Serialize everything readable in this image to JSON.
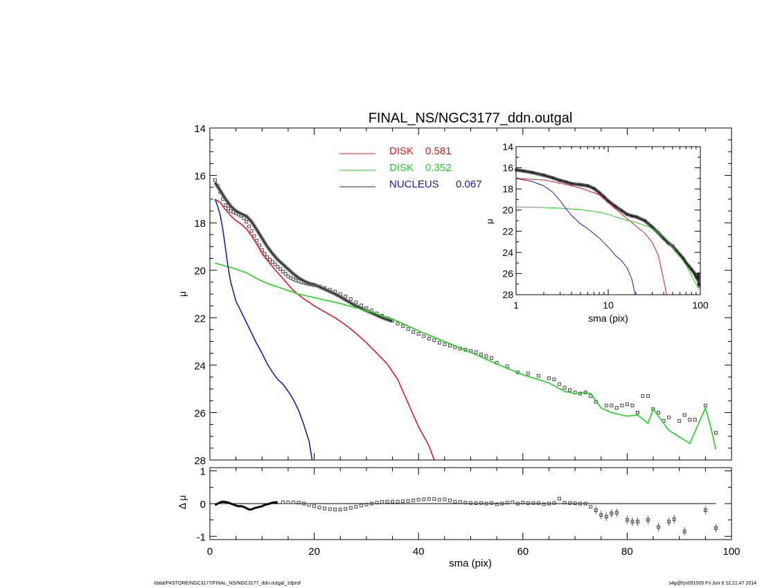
{
  "chart_data": [
    {
      "type": "line",
      "title": "FINAL_NS/NGC3177_ddn.outgal",
      "xlabel": "",
      "ylabel": "μ",
      "xlim": [
        0,
        100
      ],
      "ylim": [
        28,
        14
      ],
      "y_inverted": true,
      "x_ticks": [
        0,
        20,
        40,
        60,
        80,
        100
      ],
      "y_ticks": [
        14,
        16,
        18,
        20,
        22,
        24,
        26,
        28
      ],
      "legend_position": "top-center",
      "components": [
        {
          "name": "DISK",
          "value": "0.581",
          "color": "#e8141c"
        },
        {
          "name": "DISK",
          "value": "0.352",
          "color": "#19d419"
        },
        {
          "name": "NUCLEUS",
          "value": "0.067",
          "color": "#1a1ab4"
        }
      ],
      "series": [
        {
          "component": 0,
          "color": "#e8141c",
          "x": [
            1,
            2,
            3,
            4,
            5,
            6,
            7,
            8,
            9,
            10,
            12,
            14,
            16,
            18,
            20,
            22,
            24,
            26,
            28,
            30,
            32,
            34,
            36,
            38,
            40,
            42,
            43
          ],
          "y": [
            17.0,
            17.15,
            17.45,
            17.7,
            17.9,
            18.05,
            18.25,
            18.55,
            18.9,
            19.3,
            19.85,
            20.35,
            20.85,
            21.2,
            21.5,
            21.75,
            22.0,
            22.3,
            22.65,
            23.05,
            23.5,
            23.95,
            24.6,
            25.6,
            26.6,
            27.4,
            28.0
          ]
        },
        {
          "component": 1,
          "color": "#19d419",
          "x": [
            1,
            3,
            5,
            7,
            9,
            11,
            13,
            15,
            17,
            20,
            25,
            30,
            35,
            40,
            45,
            50,
            55,
            60,
            65,
            68,
            70,
            72,
            73,
            74,
            75,
            77,
            80,
            82,
            84,
            85,
            88,
            92,
            95,
            96,
            97
          ],
          "y": [
            19.7,
            19.82,
            19.95,
            20.1,
            20.35,
            20.55,
            20.7,
            20.85,
            21.0,
            21.15,
            21.4,
            21.7,
            22.05,
            22.55,
            23.0,
            23.45,
            23.95,
            24.4,
            24.75,
            25.1,
            25.2,
            25.15,
            25.2,
            25.5,
            25.8,
            26.0,
            26.15,
            26.1,
            26.45,
            25.85,
            26.75,
            27.3,
            25.8,
            26.6,
            27.55
          ]
        },
        {
          "component": 2,
          "color": "#1a1ab4",
          "x": [
            1,
            1.5,
            2,
            2.5,
            3,
            3.5,
            4,
            5,
            6,
            7,
            8,
            9,
            10,
            11,
            12,
            13,
            14,
            15,
            16,
            17,
            18,
            19,
            19.6
          ],
          "y": [
            17.0,
            17.3,
            17.7,
            18.3,
            19.1,
            19.9,
            20.5,
            21.3,
            21.75,
            22.2,
            22.65,
            23.1,
            23.5,
            23.95,
            24.3,
            24.6,
            24.8,
            25.1,
            25.45,
            25.9,
            26.5,
            27.2,
            28.0
          ]
        },
        {
          "name": "",
          "color": "#000000",
          "style": "thin-line",
          "x": [
            1,
            2,
            3,
            4,
            5,
            6,
            7,
            8,
            9,
            10,
            11,
            12,
            13,
            14,
            15,
            16,
            17,
            18,
            19,
            20,
            21,
            22,
            23,
            24,
            25,
            26,
            27,
            28,
            29,
            30,
            31,
            32,
            33,
            34,
            35
          ],
          "y": [
            16.3,
            16.65,
            17.0,
            17.3,
            17.5,
            17.62,
            17.72,
            17.95,
            18.3,
            18.65,
            19.0,
            19.3,
            19.55,
            19.75,
            19.95,
            20.15,
            20.32,
            20.45,
            20.55,
            20.6,
            20.7,
            20.8,
            20.9,
            21.0,
            21.12,
            21.25,
            21.38,
            21.5,
            21.6,
            21.7,
            21.8,
            21.9,
            22.0,
            22.08,
            22.15
          ]
        },
        {
          "name": "",
          "color": "#000000",
          "style": "square-markers",
          "x": [
            1,
            1.5,
            2,
            2.5,
            3,
            3.5,
            4,
            4.5,
            5,
            5.5,
            6,
            6.5,
            7,
            7.5,
            8,
            8.5,
            9,
            9.5,
            10,
            10.5,
            11,
            11.5,
            12,
            12.5,
            13,
            13.5,
            14,
            14.5,
            15,
            15.5,
            16,
            16.5,
            17,
            17.5,
            18,
            18.5,
            19,
            19.5,
            20,
            21,
            22,
            23,
            24,
            25,
            26,
            27,
            28,
            29,
            30,
            31,
            32,
            33,
            34,
            35,
            36,
            37,
            38,
            39,
            40,
            41,
            42,
            43,
            44,
            45,
            46,
            47,
            48,
            49,
            50,
            51,
            52,
            53,
            54,
            55,
            56,
            57,
            58,
            59,
            60,
            61,
            62,
            63,
            64,
            65,
            66,
            67,
            68,
            69,
            70,
            71,
            72,
            73,
            74,
            75,
            76,
            77,
            78,
            79,
            80,
            81,
            82,
            83,
            84,
            85,
            86,
            87,
            88,
            89,
            90,
            91,
            92,
            93,
            94,
            95,
            96,
            97
          ],
          "y": [
            16.2,
            16.45,
            16.7,
            17.0,
            17.25,
            17.4,
            17.5,
            17.55,
            17.6,
            17.65,
            17.7,
            17.8,
            17.95,
            18.15,
            18.35,
            18.55,
            18.75,
            18.95,
            19.15,
            19.3,
            19.45,
            19.55,
            19.65,
            19.75,
            19.85,
            19.95,
            20.05,
            20.15,
            20.25,
            20.32,
            20.38,
            20.42,
            20.46,
            20.5,
            20.52,
            20.55,
            20.58,
            20.6,
            20.63,
            20.68,
            20.75,
            20.82,
            20.9,
            21.0,
            21.1,
            21.22,
            21.35,
            21.48,
            21.6,
            21.7,
            21.82,
            21.92,
            22.02,
            22.12,
            22.25,
            22.35,
            22.48,
            22.6,
            22.68,
            22.78,
            22.88,
            22.95,
            23.05,
            23.12,
            23.18,
            23.25,
            23.3,
            23.35,
            23.4,
            23.45,
            23.55,
            23.62,
            23.7,
            23.75,
            23.85,
            23.92,
            24.0,
            24.08,
            24.15,
            24.22,
            24.28,
            24.35,
            24.42,
            24.5,
            24.55,
            24.62,
            24.7,
            24.78,
            24.85,
            24.92,
            25.0,
            25.05,
            25.12,
            25.2,
            25.25,
            25.3,
            25.35,
            25.4,
            25.45,
            25.5,
            25.55,
            25.6,
            25.65,
            25.7,
            25.75,
            25.8,
            25.85,
            25.9,
            25.95,
            26.0,
            26.05,
            26.1,
            26.15,
            26.2,
            26.25,
            26.3
          ],
          "note": "profile points; later points sparser",
          "sparse_x": [
            55,
            57,
            59,
            61,
            63,
            65,
            66,
            67,
            68,
            69,
            70,
            71,
            72,
            73,
            74,
            76,
            77,
            78,
            79,
            80,
            81,
            82,
            83,
            84,
            85,
            86,
            87,
            88,
            90,
            91,
            92,
            93,
            95,
            97
          ],
          "sparse_y": [
            23.9,
            24.05,
            24.3,
            24.35,
            24.45,
            24.55,
            24.6,
            24.8,
            24.95,
            25.05,
            25.15,
            25.2,
            25.15,
            25.3,
            25.55,
            25.7,
            25.7,
            25.8,
            25.7,
            25.65,
            25.7,
            26.0,
            25.3,
            25.3,
            25.85,
            26.0,
            26.35,
            26.2,
            26.35,
            26.1,
            26.3,
            26.3,
            25.7,
            26.85
          ]
        }
      ]
    },
    {
      "type": "line",
      "title": "",
      "xlabel": "sma (pix)",
      "ylabel": "μ",
      "xscale": "log",
      "xlim": [
        1,
        100
      ],
      "ylim": [
        28,
        14
      ],
      "y_inverted": true,
      "x_ticks": [
        1,
        10,
        100
      ],
      "y_ticks": [
        14,
        16,
        18,
        20,
        22,
        24,
        26,
        28
      ],
      "series": [
        {
          "component": 0,
          "color": "#e8141c",
          "x": [
            1,
            2,
            3,
            5,
            8,
            10,
            15,
            20,
            25,
            30,
            35,
            40,
            43
          ],
          "y": [
            17.0,
            17.15,
            17.45,
            17.9,
            18.55,
            19.3,
            20.6,
            21.5,
            22.2,
            23.05,
            24.3,
            26.6,
            28.0
          ]
        },
        {
          "component": 1,
          "color": "#19d419",
          "x": [
            1,
            2,
            3,
            5,
            8,
            10,
            15,
            20,
            30,
            40,
            50,
            60,
            70,
            80,
            90,
            97
          ],
          "y": [
            19.7,
            19.75,
            19.82,
            19.95,
            20.2,
            20.4,
            20.9,
            21.15,
            21.7,
            22.55,
            23.45,
            24.4,
            25.2,
            26.15,
            27.0,
            27.55
          ]
        },
        {
          "component": 2,
          "color": "#1a1ab4",
          "x": [
            1,
            1.5,
            2,
            2.5,
            3,
            3.5,
            4,
            5,
            6,
            8,
            10,
            12,
            14,
            16,
            18,
            19.6
          ],
          "y": [
            17.0,
            17.3,
            17.7,
            18.3,
            19.1,
            19.9,
            20.5,
            21.3,
            21.75,
            22.65,
            23.5,
            24.3,
            24.8,
            25.45,
            26.5,
            28.0
          ]
        },
        {
          "name": "",
          "color": "#000000",
          "style": "square-markers",
          "x": [
            1,
            1.2,
            1.5,
            2,
            2.5,
            3,
            3.5,
            4,
            5,
            6,
            7,
            8,
            9,
            10,
            12,
            14,
            16,
            18,
            20,
            25,
            30,
            35,
            40,
            45,
            50,
            55,
            60,
            65,
            70,
            75,
            80,
            85,
            88,
            90,
            93,
            95,
            97
          ],
          "y": [
            16.2,
            16.3,
            16.45,
            16.7,
            16.95,
            17.2,
            17.35,
            17.5,
            17.6,
            17.7,
            17.95,
            18.35,
            18.75,
            19.15,
            19.65,
            20.05,
            20.4,
            20.55,
            20.63,
            21.0,
            21.6,
            22.15,
            22.68,
            23.12,
            23.4,
            23.85,
            24.22,
            24.55,
            25.0,
            25.3,
            25.6,
            25.9,
            26.1,
            26.3,
            26.5,
            26.0,
            27.2
          ]
        }
      ]
    },
    {
      "type": "scatter",
      "title": "",
      "xlabel": "sma (pix)",
      "ylabel": "Δ μ",
      "xlim": [
        0,
        100
      ],
      "ylim": [
        -1.1,
        1.1
      ],
      "x_ticks": [
        0,
        20,
        40,
        60,
        80,
        100
      ],
      "y_ticks": [
        -1,
        0,
        1
      ],
      "zero_line_x": [
        1,
        97
      ],
      "series": [
        {
          "name": "",
          "color": "#000000",
          "x": [
            1,
            1.5,
            2,
            2.5,
            3,
            3.5,
            4,
            4.5,
            5,
            5.5,
            6,
            6.5,
            7,
            7.5,
            8,
            8.5,
            9,
            9.5,
            10,
            10.5,
            11,
            11.5,
            12,
            12.5,
            13,
            14,
            15,
            16,
            17,
            18,
            19,
            20,
            21,
            22,
            23,
            24,
            25,
            26,
            27,
            28,
            29,
            30,
            31,
            32,
            33,
            34,
            35,
            36,
            37,
            38,
            39,
            40,
            41,
            42,
            43,
            44,
            45,
            46,
            47,
            48,
            49,
            50,
            51,
            52,
            53,
            54,
            55,
            56,
            57,
            58,
            59,
            60,
            61,
            62,
            63,
            64,
            65,
            66,
            67,
            68,
            69,
            70,
            71,
            72,
            73,
            74,
            75,
            76,
            77,
            78,
            80,
            81,
            82,
            84,
            86,
            88,
            89,
            91,
            95,
            97
          ],
          "y": [
            -0.05,
            0.0,
            0.04,
            0.06,
            0.05,
            0.03,
            0.0,
            -0.03,
            -0.06,
            -0.08,
            -0.08,
            -0.1,
            -0.14,
            -0.18,
            -0.18,
            -0.14,
            -0.12,
            -0.1,
            -0.08,
            -0.04,
            -0.02,
            0.0,
            0.03,
            0.04,
            0.04,
            0.04,
            0.04,
            0.04,
            0.03,
            0.0,
            -0.04,
            -0.08,
            -0.12,
            -0.15,
            -0.17,
            -0.18,
            -0.18,
            -0.16,
            -0.13,
            -0.1,
            -0.06,
            -0.03,
            0.0,
            0.03,
            0.05,
            0.06,
            0.06,
            0.06,
            0.07,
            0.08,
            0.1,
            0.12,
            0.13,
            0.14,
            0.14,
            0.12,
            0.13,
            0.1,
            0.06,
            0.05,
            0.03,
            0.02,
            0.01,
            0.02,
            0.0,
            0.02,
            -0.02,
            0.0,
            0.03,
            0.04,
            0.0,
            0.03,
            0.01,
            0.02,
            0.02,
            -0.02,
            0.0,
            0.02,
            0.15,
            0.03,
            0.02,
            0.01,
            0.0,
            0.0,
            -0.1,
            -0.2,
            -0.35,
            -0.4,
            -0.3,
            -0.28,
            -0.5,
            -0.55,
            -0.55,
            -0.5,
            -0.72,
            -0.55,
            -0.48,
            -0.85,
            -0.2,
            -0.75
          ]
        }
      ]
    }
  ],
  "footer": {
    "left": "/data/P4STORE/NGC3177/FINAL_NS/NGC3177_ddn.outgal_1dprof",
    "right": "s4g@fys091005  Fri Jun  6 12:21:47 2014"
  }
}
